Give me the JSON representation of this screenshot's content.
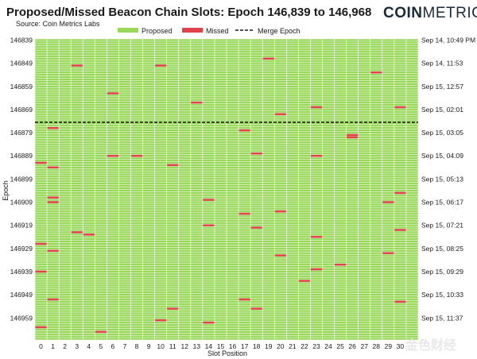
{
  "header": {
    "title": "Proposed/Missed Beacon Chain Slots: Epoch 146,839 to 146,968",
    "subtitle": "Source: Coin Metrics Labs",
    "brand_coin": "COIN",
    "brand_metrics": "METRICS"
  },
  "watermark": "金色财经",
  "colors": {
    "proposed": "#9ad85c",
    "missed": "#e0424b",
    "merge_line": "#1a1a1a",
    "grid": "#ffffff"
  },
  "chart_data": {
    "type": "heatmap",
    "title": "Proposed/Missed Beacon Chain Slots: Epoch 146,839 to 146,968",
    "subtitle": "Source: Coin Metrics Labs",
    "xlabel": "Slot Position",
    "ylabel": "Epoch",
    "x_range": [
      0,
      31
    ],
    "y_range": [
      146839,
      146968
    ],
    "legend_position": "top",
    "legend": [
      {
        "key": "proposed",
        "label": "Proposed"
      },
      {
        "key": "missed",
        "label": "Missed"
      },
      {
        "key": "merge",
        "label": "Merge Epoch"
      }
    ],
    "merge_epoch": 146875,
    "x_ticks": [
      "0",
      "1",
      "2",
      "3",
      "4",
      "5",
      "6",
      "7",
      "8",
      "9",
      "10",
      "11",
      "12",
      "13",
      "14",
      "15",
      "16",
      "17",
      "18",
      "19",
      "20",
      "21",
      "22",
      "23",
      "24",
      "25",
      "26",
      "27",
      "28",
      "29",
      "30"
    ],
    "y_ticks": [
      146839,
      146849,
      146859,
      146869,
      146879,
      146889,
      146899,
      146909,
      146919,
      146929,
      146939,
      146949,
      146959
    ],
    "right_ticks": [
      {
        "epoch": 146839,
        "label": "Sep 14, 10:49 PM"
      },
      {
        "epoch": 146849,
        "label": "Sep 14, 11:53"
      },
      {
        "epoch": 146859,
        "label": "Sep 15, 12:57"
      },
      {
        "epoch": 146869,
        "label": "Sep 15, 02:01"
      },
      {
        "epoch": 146879,
        "label": "Sep 15, 03:05"
      },
      {
        "epoch": 146889,
        "label": "Sep 15, 04:09"
      },
      {
        "epoch": 146899,
        "label": "Sep 15, 05:13"
      },
      {
        "epoch": 146909,
        "label": "Sep 15, 06:17"
      },
      {
        "epoch": 146919,
        "label": "Sep 15, 07:21"
      },
      {
        "epoch": 146929,
        "label": "Sep 15, 08:25"
      },
      {
        "epoch": 146939,
        "label": "Sep 15, 09:29"
      },
      {
        "epoch": 146949,
        "label": "Sep 15, 10:33"
      },
      {
        "epoch": 146959,
        "label": "Sep 15, 11:37"
      }
    ],
    "missed_slots": [
      {
        "epoch": 146850,
        "slot": 3
      },
      {
        "epoch": 146850,
        "slot": 10
      },
      {
        "epoch": 146847,
        "slot": 19
      },
      {
        "epoch": 146853,
        "slot": 28
      },
      {
        "epoch": 146862,
        "slot": 6
      },
      {
        "epoch": 146866,
        "slot": 13
      },
      {
        "epoch": 146868,
        "slot": 23
      },
      {
        "epoch": 146868,
        "slot": 30
      },
      {
        "epoch": 146871,
        "slot": 20
      },
      {
        "epoch": 146877,
        "slot": 1
      },
      {
        "epoch": 146878,
        "slot": 17
      },
      {
        "epoch": 146880,
        "slot": 26
      },
      {
        "epoch": 146881,
        "slot": 26
      },
      {
        "epoch": 146888,
        "slot": 18
      },
      {
        "epoch": 146889,
        "slot": 6
      },
      {
        "epoch": 146889,
        "slot": 8
      },
      {
        "epoch": 146889,
        "slot": 23
      },
      {
        "epoch": 146892,
        "slot": 0
      },
      {
        "epoch": 146893,
        "slot": 11
      },
      {
        "epoch": 146894,
        "slot": 1
      },
      {
        "epoch": 146905,
        "slot": 30
      },
      {
        "epoch": 146907,
        "slot": 1
      },
      {
        "epoch": 146908,
        "slot": 14
      },
      {
        "epoch": 146909,
        "slot": 1
      },
      {
        "epoch": 146909,
        "slot": 29
      },
      {
        "epoch": 146913,
        "slot": 20
      },
      {
        "epoch": 146914,
        "slot": 17
      },
      {
        "epoch": 146919,
        "slot": 14
      },
      {
        "epoch": 146920,
        "slot": 18
      },
      {
        "epoch": 146921,
        "slot": 30
      },
      {
        "epoch": 146922,
        "slot": 3
      },
      {
        "epoch": 146923,
        "slot": 4
      },
      {
        "epoch": 146924,
        "slot": 23
      },
      {
        "epoch": 146927,
        "slot": 0
      },
      {
        "epoch": 146930,
        "slot": 1
      },
      {
        "epoch": 146931,
        "slot": 29
      },
      {
        "epoch": 146932,
        "slot": 20
      },
      {
        "epoch": 146936,
        "slot": 25
      },
      {
        "epoch": 146938,
        "slot": 23
      },
      {
        "epoch": 146939,
        "slot": 0
      },
      {
        "epoch": 146943,
        "slot": 22
      },
      {
        "epoch": 146951,
        "slot": 1
      },
      {
        "epoch": 146951,
        "slot": 17
      },
      {
        "epoch": 146952,
        "slot": 30
      },
      {
        "epoch": 146955,
        "slot": 11
      },
      {
        "epoch": 146955,
        "slot": 18
      },
      {
        "epoch": 146960,
        "slot": 10
      },
      {
        "epoch": 146961,
        "slot": 14
      },
      {
        "epoch": 146963,
        "slot": 0
      },
      {
        "epoch": 146965,
        "slot": 5
      }
    ]
  }
}
